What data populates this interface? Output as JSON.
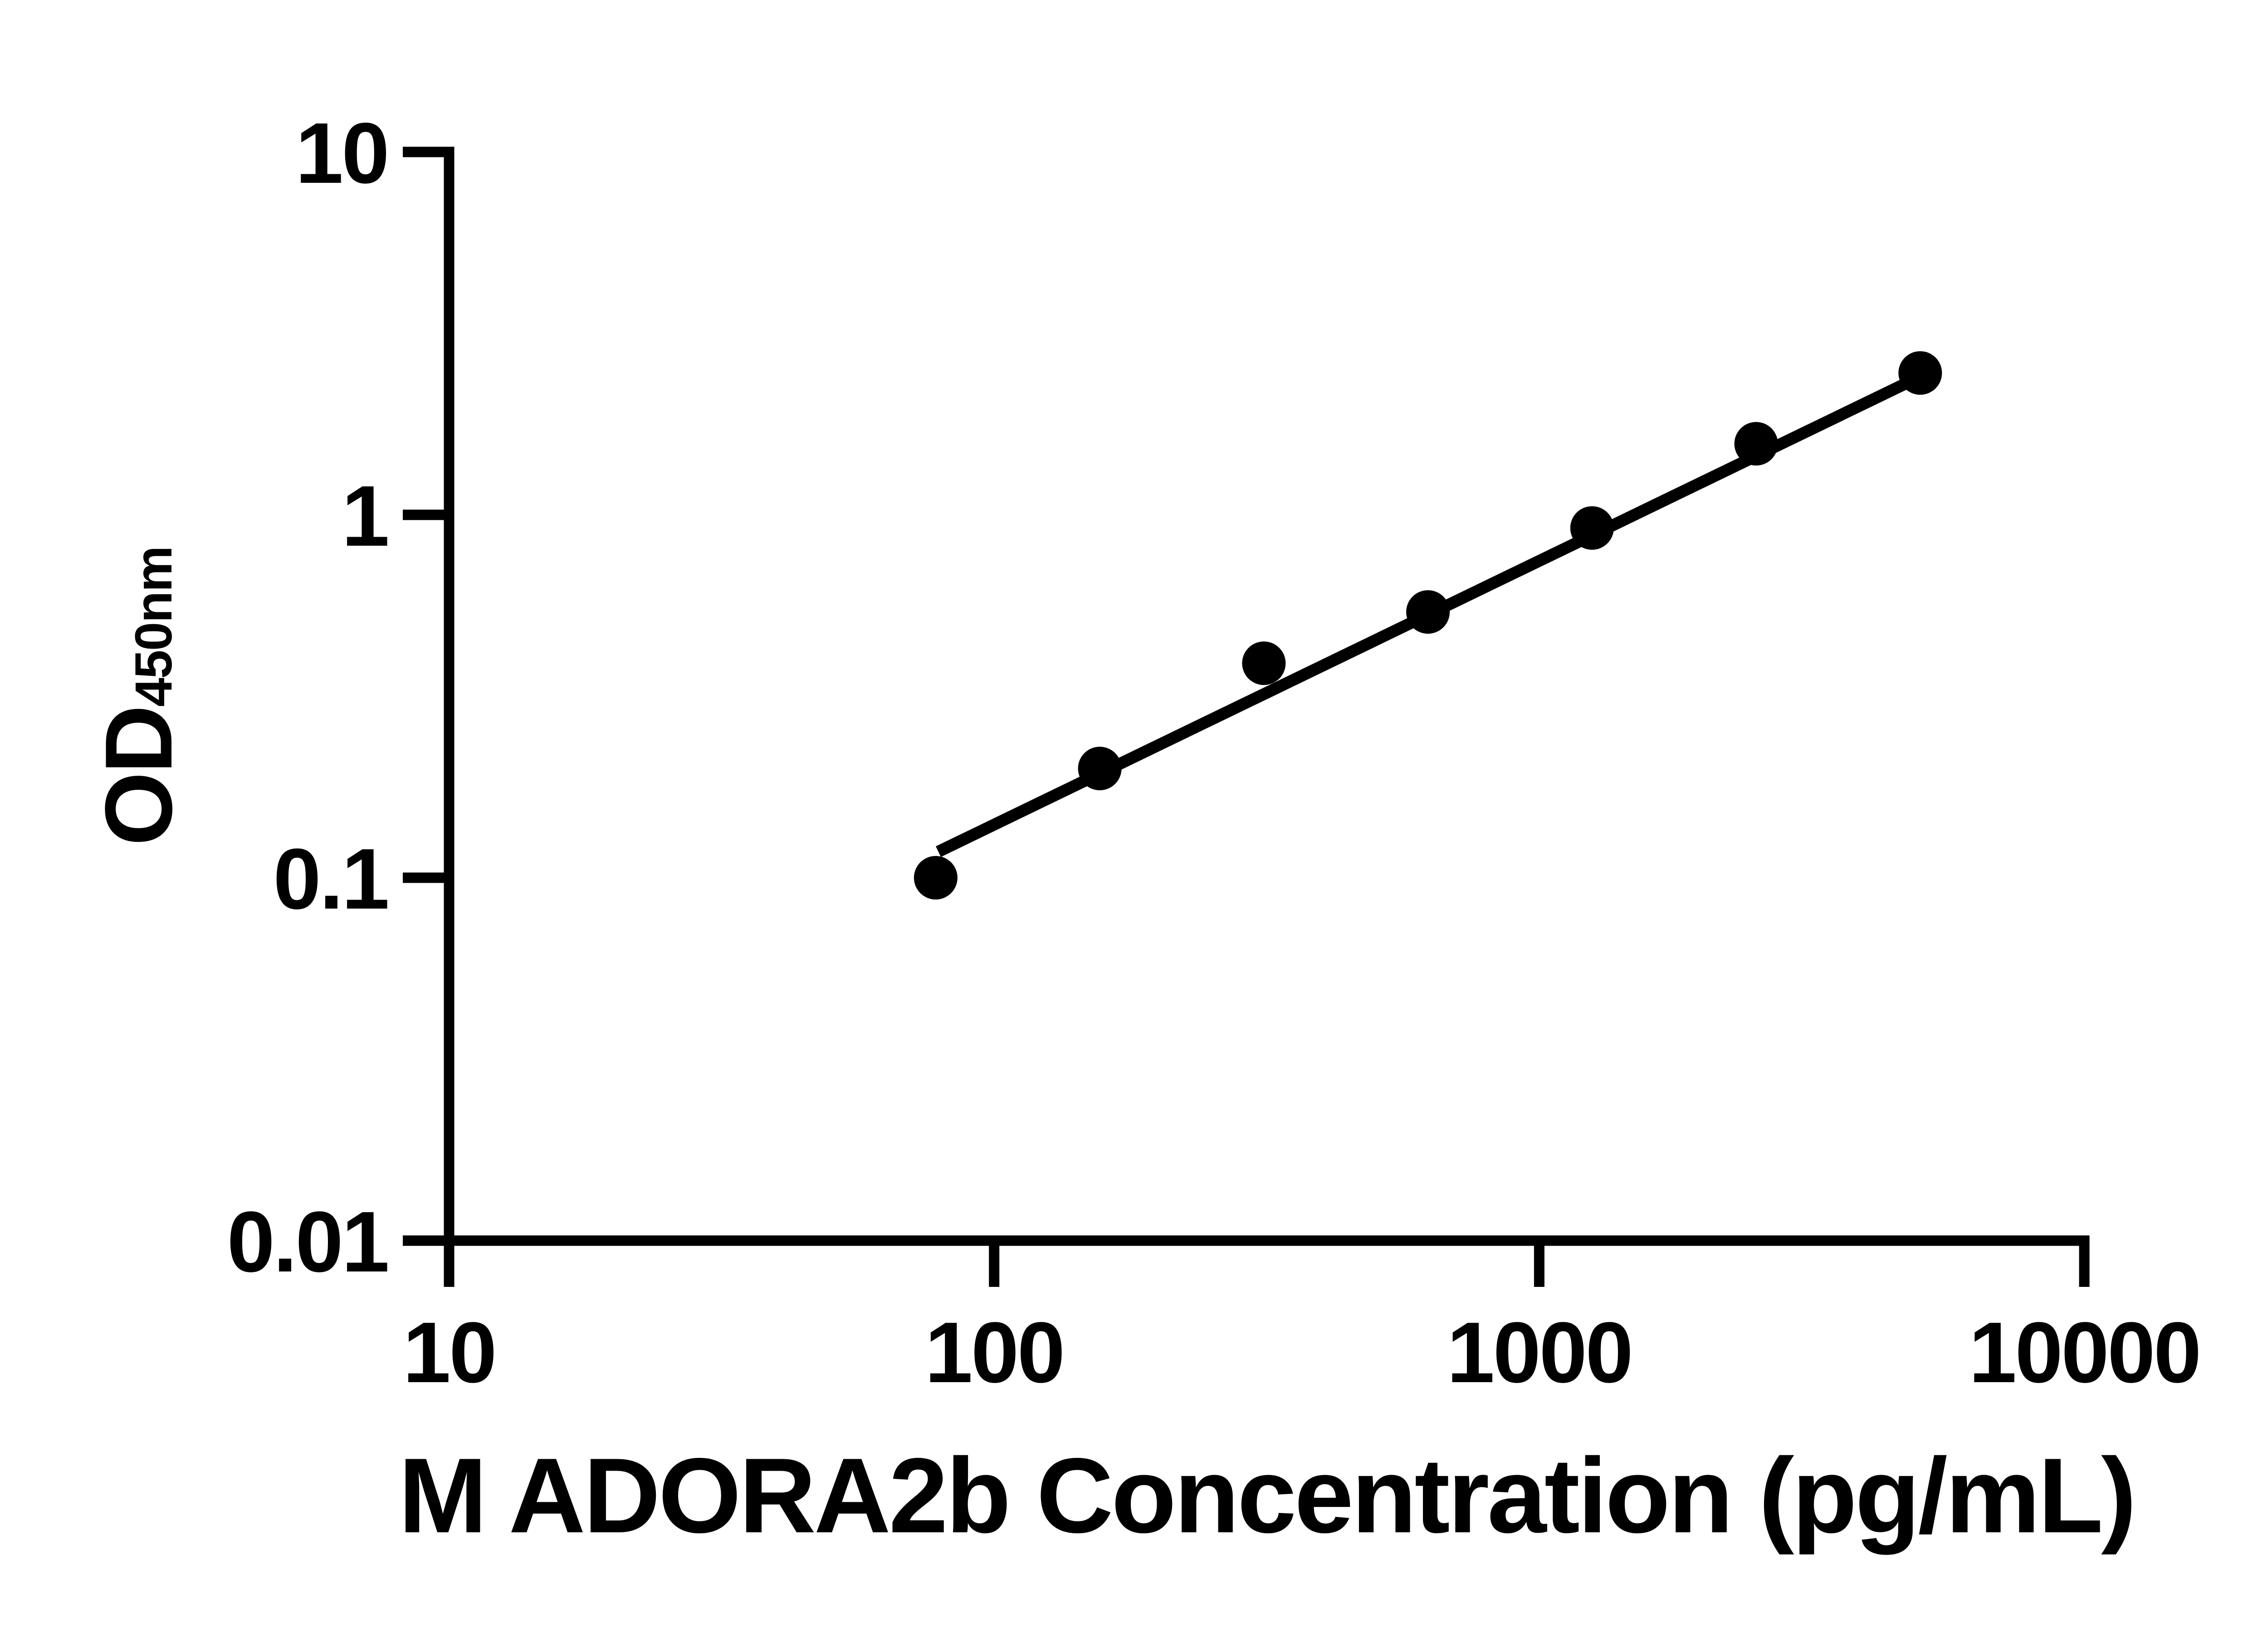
{
  "chart_data": {
    "type": "scatter",
    "title": "",
    "xlabel": "M ADORA2b Concentration (pg/mL)",
    "ylabel_main": "OD",
    "ylabel_subscript": "450nm",
    "x_scale": "log",
    "y_scale": "log",
    "xlim": [
      10,
      10000
    ],
    "ylim": [
      0.01,
      10
    ],
    "grid": false,
    "legend": false,
    "x_ticks": {
      "values": [
        10,
        100,
        1000,
        10000
      ],
      "labels": [
        "10",
        "100",
        "1000",
        "10000"
      ]
    },
    "y_ticks": {
      "values": [
        10,
        1,
        0.1,
        0.01
      ],
      "labels": [
        "10",
        "1",
        "0.1",
        "0.01"
      ]
    },
    "series": [
      {
        "marker": "circle",
        "color": "#000000",
        "x_pg_ml": [
          78.125,
          156.25,
          312.5,
          625,
          1250,
          2500,
          5000
        ],
        "od_450nm": [
          0.1,
          0.2,
          0.39,
          0.54,
          0.92,
          1.57,
          2.46
        ]
      }
    ],
    "trend_line": {
      "x_pg_ml": [
        79,
        5100
      ],
      "od_450nm": [
        0.118,
        2.44
      ]
    },
    "colors": {
      "foreground": "#000000",
      "background": "#ffffff"
    }
  }
}
